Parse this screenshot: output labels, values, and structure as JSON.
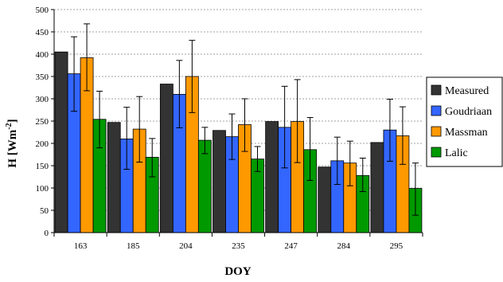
{
  "chart_data": {
    "type": "bar",
    "xlabel": "DOY",
    "ylabel": "H [Wm",
    "ylabel_superscript": "-2",
    "ylabel_close": "]",
    "ylim": [
      0,
      500
    ],
    "yticks": [
      0,
      50,
      100,
      150,
      200,
      250,
      300,
      350,
      400,
      450,
      500
    ],
    "grid": "horizontal dashed",
    "legend_position": "right",
    "categories": [
      "163",
      "185",
      "204",
      "235",
      "247",
      "284",
      "295"
    ],
    "series": [
      {
        "name": "Measured",
        "color": "#333333",
        "values": [
          405,
          247,
          333,
          229,
          249,
          147,
          202
        ],
        "errors": [
          null,
          null,
          null,
          null,
          null,
          null,
          null
        ]
      },
      {
        "name": "Goudriaan",
        "color": "#3366ff",
        "values": [
          356,
          210,
          310,
          215,
          236,
          161,
          230
        ],
        "errors": [
          [
            272,
            439
          ],
          [
            142,
            281
          ],
          [
            235,
            386
          ],
          [
            164,
            266
          ],
          [
            145,
            328
          ],
          [
            108,
            214
          ],
          [
            160,
            299
          ]
        ]
      },
      {
        "name": "Massman",
        "color": "#ff9900",
        "values": [
          392,
          232,
          350,
          242,
          249,
          156,
          217
        ],
        "errors": [
          [
            318,
            468
          ],
          [
            158,
            305
          ],
          [
            269,
            431
          ],
          [
            182,
            300
          ],
          [
            157,
            343
          ],
          [
            105,
            205
          ],
          [
            153,
            282
          ]
        ]
      },
      {
        "name": "Lalic",
        "color": "#009900",
        "values": [
          254,
          169,
          207,
          165,
          186,
          128,
          99
        ],
        "errors": [
          [
            190,
            317
          ],
          [
            125,
            211
          ],
          [
            177,
            236
          ],
          [
            137,
            193
          ],
          [
            117,
            258
          ],
          [
            92,
            167
          ],
          [
            39,
            156
          ]
        ]
      }
    ]
  }
}
